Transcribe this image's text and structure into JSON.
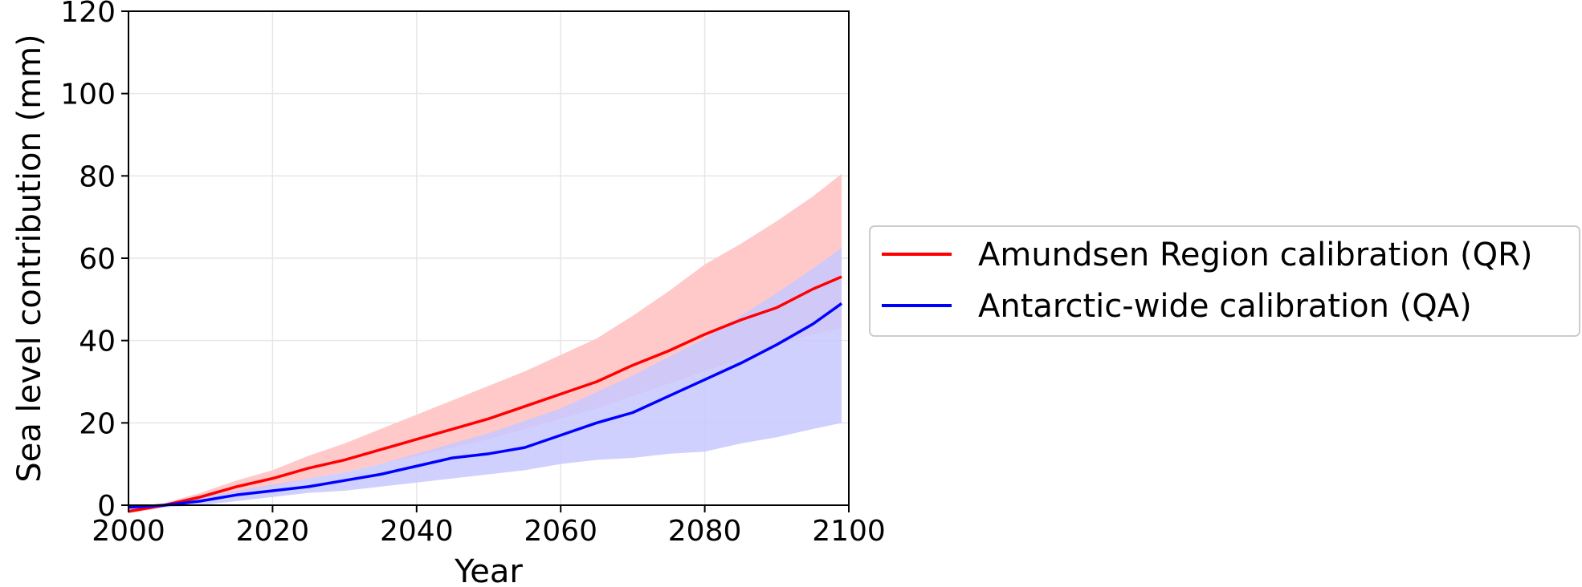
{
  "chart_data": {
    "type": "line",
    "title": "",
    "xlabel": "Year",
    "ylabel": "Sea level contribution (mm)",
    "xlim": [
      2000,
      2100
    ],
    "ylim": [
      0,
      120
    ],
    "xticks": [
      2000,
      2020,
      2040,
      2060,
      2080,
      2100
    ],
    "yticks": [
      0,
      20,
      40,
      60,
      80,
      100,
      120
    ],
    "grid": true,
    "legend_position": "outside right",
    "series": [
      {
        "name": "Amundsen Region calibration (QR)",
        "color": "#ff0000",
        "band_color": "#ffc9c9",
        "x": [
          2000,
          2005,
          2010,
          2015,
          2020,
          2025,
          2030,
          2035,
          2040,
          2045,
          2050,
          2055,
          2060,
          2065,
          2070,
          2075,
          2080,
          2085,
          2090,
          2095,
          2099
        ],
        "y": [
          -1.5,
          0.0,
          2.0,
          4.5,
          6.5,
          9.0,
          11.0,
          13.5,
          16.0,
          18.5,
          21.0,
          24.0,
          27.0,
          30.0,
          34.0,
          37.5,
          41.5,
          45.0,
          48.0,
          52.5,
          55.5
        ],
        "upper": [
          -1.0,
          0.5,
          3.0,
          6.0,
          8.5,
          12.0,
          15.0,
          18.5,
          22.0,
          25.5,
          29.0,
          32.5,
          36.5,
          40.5,
          46.0,
          52.0,
          58.5,
          63.5,
          69.0,
          75.0,
          80.5
        ],
        "lower": [
          -2.0,
          -0.5,
          1.0,
          3.0,
          4.5,
          6.5,
          8.0,
          10.0,
          12.0,
          14.0,
          16.0,
          18.5,
          21.0,
          23.5,
          26.5,
          29.5,
          32.5,
          35.5,
          39.0,
          41.5,
          43.0
        ]
      },
      {
        "name": "Antarctic-wide calibration (QA)",
        "color": "#0000ff",
        "band_color": "#c8c8ff",
        "x": [
          2000,
          2005,
          2010,
          2015,
          2020,
          2025,
          2030,
          2035,
          2040,
          2045,
          2050,
          2055,
          2060,
          2065,
          2070,
          2075,
          2080,
          2085,
          2090,
          2095,
          2099
        ],
        "y": [
          -0.5,
          0.0,
          1.0,
          2.5,
          3.5,
          4.5,
          6.0,
          7.5,
          9.5,
          11.5,
          12.5,
          14.0,
          17.0,
          20.0,
          22.5,
          26.5,
          30.5,
          34.5,
          39.0,
          44.0,
          49.0
        ],
        "upper": [
          -0.5,
          0.5,
          2.0,
          3.5,
          5.0,
          6.5,
          8.0,
          10.0,
          12.5,
          15.0,
          17.5,
          20.5,
          23.5,
          27.5,
          31.5,
          36.0,
          40.5,
          46.0,
          51.5,
          57.5,
          62.5
        ],
        "lower": [
          -1.0,
          -0.5,
          0.0,
          1.0,
          2.0,
          3.0,
          3.5,
          4.5,
          5.5,
          6.5,
          7.5,
          8.5,
          10.0,
          11.0,
          11.5,
          12.5,
          13.0,
          15.0,
          16.5,
          18.5,
          20.0
        ]
      }
    ]
  }
}
